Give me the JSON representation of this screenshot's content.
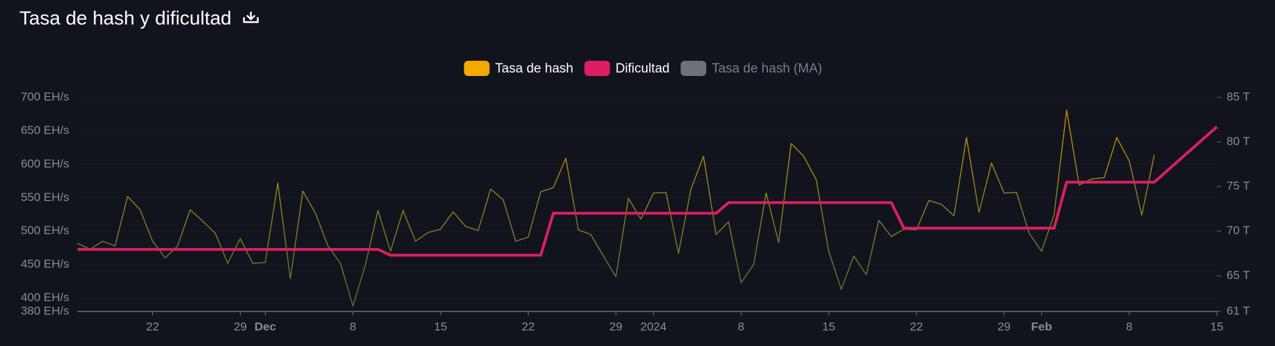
{
  "chart_data": {
    "type": "line",
    "title": "Tasa de hash y dificultad",
    "x": [
      "2023-11-16",
      "2023-11-17",
      "2023-11-18",
      "2023-11-19",
      "2023-11-20",
      "2023-11-21",
      "2023-11-22",
      "2023-11-23",
      "2023-11-24",
      "2023-11-25",
      "2023-11-26",
      "2023-11-27",
      "2023-11-28",
      "2023-11-29",
      "2023-11-30",
      "2023-12-01",
      "2023-12-02",
      "2023-12-03",
      "2023-12-04",
      "2023-12-05",
      "2023-12-06",
      "2023-12-07",
      "2023-12-08",
      "2023-12-09",
      "2023-12-10",
      "2023-12-11",
      "2023-12-12",
      "2023-12-13",
      "2023-12-14",
      "2023-12-15",
      "2023-12-16",
      "2023-12-17",
      "2023-12-18",
      "2023-12-19",
      "2023-12-20",
      "2023-12-21",
      "2023-12-22",
      "2023-12-23",
      "2023-12-24",
      "2023-12-25",
      "2023-12-26",
      "2023-12-27",
      "2023-12-28",
      "2023-12-29",
      "2023-12-30",
      "2023-12-31",
      "2024-01-01",
      "2024-01-02",
      "2024-01-03",
      "2024-01-04",
      "2024-01-05",
      "2024-01-06",
      "2024-01-07",
      "2024-01-08",
      "2024-01-09",
      "2024-01-10",
      "2024-01-11",
      "2024-01-12",
      "2024-01-13",
      "2024-01-14",
      "2024-01-15",
      "2024-01-16",
      "2024-01-17",
      "2024-01-18",
      "2024-01-19",
      "2024-01-20",
      "2024-01-21",
      "2024-01-22",
      "2024-01-23",
      "2024-01-24",
      "2024-01-25",
      "2024-01-26",
      "2024-01-27",
      "2024-01-28",
      "2024-01-29",
      "2024-01-30",
      "2024-01-31",
      "2024-02-01",
      "2024-02-02",
      "2024-02-03",
      "2024-02-04",
      "2024-02-05",
      "2024-02-06",
      "2024-02-07",
      "2024-02-08",
      "2024-02-09",
      "2024-02-10",
      "2024-02-11",
      "2024-02-12",
      "2024-02-13",
      "2024-02-14",
      "2024-02-15"
    ],
    "series": [
      {
        "name": "Tasa de hash",
        "color": "#f5a800",
        "axis": "y",
        "values": [
          482,
          473,
          485,
          478,
          552,
          532,
          485,
          460,
          478,
          532,
          515,
          497,
          452,
          489,
          452,
          453,
          572,
          429,
          560,
          527,
          478,
          452,
          388,
          450,
          531,
          470,
          531,
          485,
          498,
          503,
          529,
          507,
          501,
          563,
          547,
          485,
          491,
          559,
          565,
          609,
          502,
          495,
          463,
          432,
          549,
          518,
          557,
          558,
          467,
          563,
          612,
          495,
          514,
          423,
          450,
          557,
          483,
          631,
          612,
          577,
          470,
          413,
          463,
          435,
          516,
          492,
          503,
          502,
          546,
          540,
          523,
          640,
          528,
          602,
          557,
          558,
          497,
          470,
          525,
          681,
          569,
          578,
          580,
          640,
          605,
          524,
          614,
          null,
          null,
          null,
          null,
          null
        ]
      },
      {
        "name": "Dificultad",
        "color": "#dc1f63",
        "axis": "y2",
        "values": [
          67.96,
          67.96,
          67.96,
          67.96,
          67.96,
          67.96,
          67.96,
          67.96,
          67.96,
          67.96,
          67.96,
          67.96,
          67.96,
          67.96,
          67.96,
          67.96,
          67.96,
          67.96,
          67.96,
          67.96,
          67.96,
          67.96,
          67.96,
          67.96,
          67.96,
          67.31,
          67.31,
          67.31,
          67.31,
          67.31,
          67.31,
          67.31,
          67.31,
          67.31,
          67.31,
          67.31,
          67.31,
          67.31,
          72.01,
          72.01,
          72.01,
          72.01,
          72.01,
          72.01,
          72.01,
          72.01,
          72.01,
          72.01,
          72.01,
          72.01,
          72.01,
          72.01,
          73.2,
          73.2,
          73.2,
          73.2,
          73.2,
          73.2,
          73.2,
          73.2,
          73.2,
          73.2,
          73.2,
          73.2,
          73.2,
          73.2,
          70.34,
          70.34,
          70.34,
          70.34,
          70.34,
          70.34,
          70.34,
          70.34,
          70.34,
          70.34,
          70.34,
          70.34,
          70.34,
          75.5,
          75.5,
          75.5,
          75.5,
          75.5,
          75.5,
          75.5,
          75.5,
          76.74,
          77.98,
          79.22,
          80.46,
          81.7
        ]
      },
      {
        "name": "Tasa de hash (MA)",
        "color": "#6e707a",
        "hidden": true
      }
    ],
    "xlim": [
      "2023-11-16",
      "2024-02-15"
    ],
    "xticks": [
      {
        "value": "2023-11-22",
        "label": "22"
      },
      {
        "value": "2023-11-29",
        "label": "29"
      },
      {
        "value": "2023-12-01",
        "label": "Dec"
      },
      {
        "value": "2023-12-08",
        "label": "8"
      },
      {
        "value": "2023-12-15",
        "label": "15"
      },
      {
        "value": "2023-12-22",
        "label": "22"
      },
      {
        "value": "2023-12-29",
        "label": "29"
      },
      {
        "value": "2024-01-01",
        "label": "2024"
      },
      {
        "value": "2024-01-08",
        "label": "8"
      },
      {
        "value": "2024-01-15",
        "label": "15"
      },
      {
        "value": "2024-01-22",
        "label": "22"
      },
      {
        "value": "2024-01-29",
        "label": "29"
      },
      {
        "value": "2024-02-01",
        "label": "Feb"
      },
      {
        "value": "2024-02-08",
        "label": "8"
      },
      {
        "value": "2024-02-15",
        "label": "15"
      }
    ],
    "ylim": [
      380,
      700
    ],
    "yticks": [
      {
        "value": 380,
        "label": "380 EH/s"
      },
      {
        "value": 400,
        "label": "400 EH/s"
      },
      {
        "value": 450,
        "label": "450 EH/s"
      },
      {
        "value": 500,
        "label": "500 EH/s"
      },
      {
        "value": 550,
        "label": "550 EH/s"
      },
      {
        "value": 600,
        "label": "600 EH/s"
      },
      {
        "value": 650,
        "label": "650 EH/s"
      },
      {
        "value": 700,
        "label": "700 EH/s"
      }
    ],
    "y2lim": [
      61,
      85
    ],
    "y2ticks": [
      {
        "value": 61,
        "label": "61 T"
      },
      {
        "value": 65,
        "label": "65 T"
      },
      {
        "value": 70,
        "label": "70 T"
      },
      {
        "value": 75,
        "label": "75 T"
      },
      {
        "value": 80,
        "label": "80 T"
      },
      {
        "value": 85,
        "label": "85 T"
      }
    ],
    "grid": true,
    "legend": "top"
  }
}
